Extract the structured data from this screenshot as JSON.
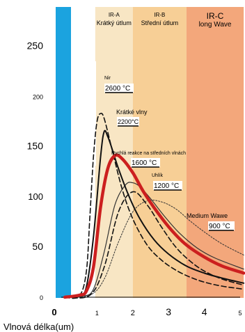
{
  "chart_data": {
    "type": "line",
    "xlabel": "Vlnová délka(um)",
    "ylabel": "",
    "xlim": [
      0,
      5
    ],
    "ylim": [
      0,
      260
    ],
    "x_ticks": [
      "0",
      "1",
      "2",
      "3",
      "4",
      "5"
    ],
    "y_ticks": [
      "0",
      "50",
      "100",
      "150",
      "200",
      "250"
    ],
    "bands": [
      {
        "code": "IR-A",
        "name": "Krátký útlum",
        "from": 0.95,
        "to": 2.0,
        "color": "#f8e6c4"
      },
      {
        "code": "IR-B",
        "name": "Střední útlum",
        "from": 2.0,
        "to": 3.5,
        "color": "#f7cf96"
      },
      {
        "code": "IR-C",
        "name": "long Wave",
        "from": 3.5,
        "to": 5.1,
        "color": "#f3a77b"
      }
    ],
    "series": [
      {
        "name": "Nir",
        "temperature": "2600 °C",
        "color": "#111111",
        "style": "dashed",
        "width": 1.6,
        "x": [
          0.1,
          0.5,
          0.7,
          0.8,
          0.9,
          1.0,
          1.1,
          1.2,
          1.4,
          1.7,
          2.0,
          2.4,
          2.8,
          3.2,
          3.6,
          4.0,
          4.5,
          5.1
        ],
        "values": [
          0,
          1,
          25,
          80,
          140,
          175,
          183,
          178,
          150,
          108,
          78,
          52,
          37,
          27,
          20,
          15,
          11,
          8
        ]
      },
      {
        "name": "Krátké vlny",
        "temperature": "2200°C",
        "color": "#111111",
        "style": "solid",
        "width": 2.0,
        "x": [
          0.1,
          0.5,
          0.7,
          0.9,
          1.1,
          1.2,
          1.3,
          1.4,
          1.6,
          1.9,
          2.2,
          2.6,
          3.0,
          3.5,
          4.0,
          4.5,
          5.1
        ],
        "values": [
          0,
          2,
          10,
          60,
          140,
          165,
          160,
          150,
          128,
          100,
          78,
          57,
          43,
          31,
          24,
          19,
          14
        ]
      },
      {
        "name": "Rychlá reakce na středních vlnách",
        "temperature": "1600 °C",
        "color": "#cc1f1f",
        "style": "solid",
        "width": 4.5,
        "x": [
          0.1,
          0.5,
          0.7,
          0.9,
          1.1,
          1.3,
          1.5,
          1.7,
          2.0,
          2.3,
          2.7,
          3.1,
          3.5,
          4.0,
          4.5,
          5.1
        ],
        "values": [
          0,
          2,
          6,
          30,
          90,
          128,
          141,
          138,
          124,
          105,
          84,
          66,
          52,
          40,
          31,
          24
        ]
      },
      {
        "name": "Uhlík",
        "temperature": "1200 °C",
        "color": "#333333",
        "style": "solid",
        "width": 1.2,
        "x": [
          0.1,
          0.6,
          0.9,
          1.2,
          1.5,
          1.8,
          2.0,
          2.2,
          2.5,
          2.9,
          3.3,
          3.8,
          4.3,
          5.1
        ],
        "values": [
          0,
          1,
          8,
          45,
          92,
          112,
          114,
          110,
          98,
          80,
          64,
          49,
          39,
          28
        ]
      },
      {
        "name": "Medium Wawe",
        "temperature": "900 °C",
        "color": "#333333",
        "style": "dotted",
        "width": 1.0,
        "x": [
          0.1,
          0.8,
          1.2,
          1.6,
          2.0,
          2.4,
          2.8,
          3.2,
          3.6,
          4.0,
          4.5,
          5.1
        ],
        "values": [
          0,
          2,
          18,
          55,
          85,
          96,
          95,
          88,
          76,
          65,
          53,
          42
        ]
      },
      {
        "name": "",
        "temperature": "",
        "color": "#111111",
        "style": "dashed",
        "width": 1.6,
        "x": [
          0.1,
          0.8,
          1.2,
          1.6,
          2.0,
          2.4,
          2.8,
          3.2,
          3.6,
          4.0,
          4.5,
          5.1
        ],
        "values": [
          0,
          2,
          30,
          85,
          105,
          92,
          70,
          50,
          36,
          26,
          18,
          12
        ]
      }
    ]
  }
}
